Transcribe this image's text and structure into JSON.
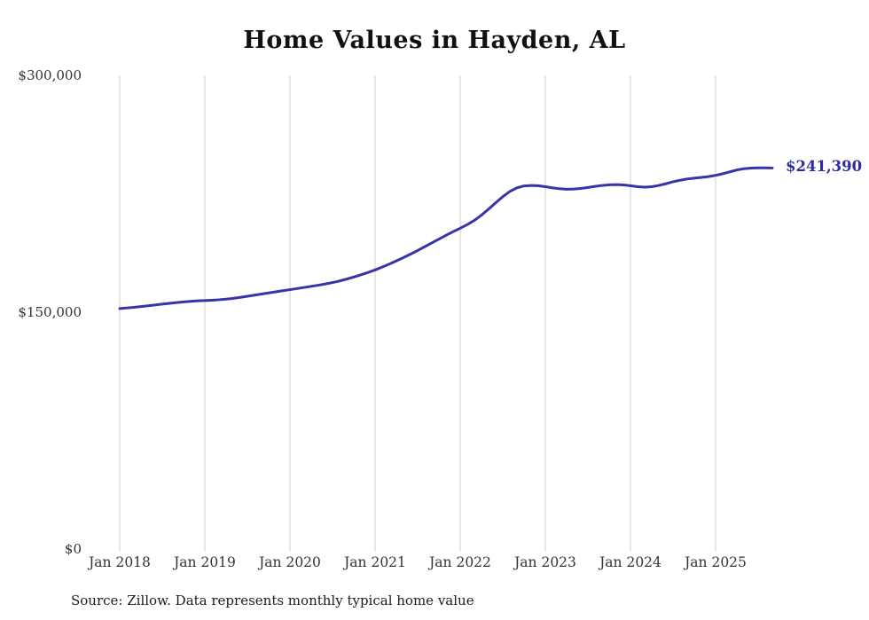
{
  "chart": {
    "title": "Home Values in Hayden, AL",
    "latest_value_label": "$241,390",
    "source": "Source: Zillow. Data represents monthly typical home value",
    "line_color": "#3634a8",
    "grid_color": "#cfcfcf"
  },
  "chart_data": {
    "type": "line",
    "title": "Home Values in Hayden, AL",
    "x_start": "2018-01",
    "x_interval": "monthly",
    "x_tick_labels": [
      "Jan 2018",
      "Jan 2019",
      "Jan 2020",
      "Jan 2021",
      "Jan 2022",
      "Jan 2023",
      "Jan 2024",
      "Jan 2025"
    ],
    "y_ticks": [
      {
        "value": 0,
        "label": "$0"
      },
      {
        "value": 150000,
        "label": "$150,000"
      },
      {
        "value": 300000,
        "label": "$300,000"
      }
    ],
    "ylim": [
      0,
      300000
    ],
    "grid": "vertical-only",
    "legend": "none",
    "latest_value": 241390,
    "series": [
      {
        "name": "Monthly typical home value",
        "values": [
          152300,
          152700,
          153100,
          153600,
          154100,
          154600,
          155100,
          155600,
          156100,
          156500,
          156900,
          157200,
          157400,
          157600,
          157900,
          158300,
          158800,
          159400,
          160100,
          160800,
          161500,
          162200,
          162900,
          163600,
          164300,
          165000,
          165700,
          166400,
          167100,
          167900,
          168800,
          169800,
          171000,
          172300,
          173700,
          175200,
          176800,
          178600,
          180500,
          182500,
          184600,
          186800,
          189100,
          191500,
          193900,
          196300,
          198700,
          201000,
          203200,
          205500,
          208200,
          211500,
          215300,
          219300,
          223200,
          226500,
          228800,
          230000,
          230300,
          230100,
          229500,
          228800,
          228200,
          227900,
          228000,
          228400,
          229000,
          229700,
          230300,
          230700,
          230800,
          230600,
          230100,
          229500,
          229200,
          229500,
          230300,
          231400,
          232600,
          233600,
          234400,
          234900,
          235400,
          235900,
          236700,
          237700,
          238900,
          240100,
          240900,
          241300,
          241400,
          241400,
          241390
        ]
      }
    ],
    "source": "Source: Zillow. Data represents monthly typical home value"
  }
}
